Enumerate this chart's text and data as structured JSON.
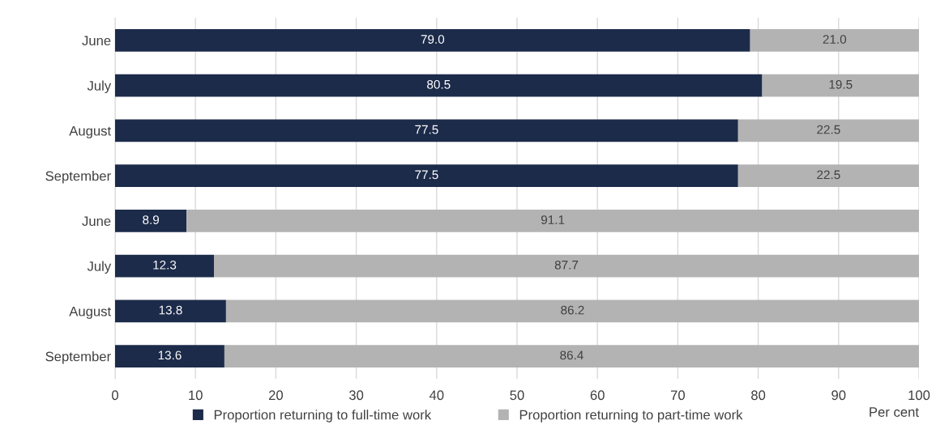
{
  "chart_data": {
    "type": "bar",
    "orientation": "horizontal",
    "stacked": true,
    "categories": [
      "June",
      "July",
      "August",
      "September",
      "June",
      "July",
      "August",
      "September"
    ],
    "series": [
      {
        "name": "Proportion returning to full-time work",
        "color": "#1c2b4a",
        "values": [
          79.0,
          80.5,
          77.5,
          77.5,
          8.9,
          12.3,
          13.8,
          13.6
        ],
        "value_labels": [
          "79.0",
          "80.5",
          "77.5",
          "77.5",
          "8.9",
          "12.3",
          "13.8",
          "13.6"
        ]
      },
      {
        "name": "Proportion returning to part-time work",
        "color": "#b3b3b3",
        "values": [
          21.0,
          19.5,
          22.5,
          22.5,
          91.1,
          87.7,
          86.2,
          86.4
        ],
        "value_labels": [
          "21.0",
          "19.5",
          "22.5",
          "22.5",
          "91.1",
          "87.7",
          "86.2",
          "86.4"
        ]
      }
    ],
    "xlim": [
      0,
      100
    ],
    "xticks": [
      0,
      10,
      20,
      30,
      40,
      50,
      60,
      70,
      80,
      90,
      100
    ],
    "xlabel": "Per cent",
    "grid": "x",
    "legend": "bottom"
  }
}
